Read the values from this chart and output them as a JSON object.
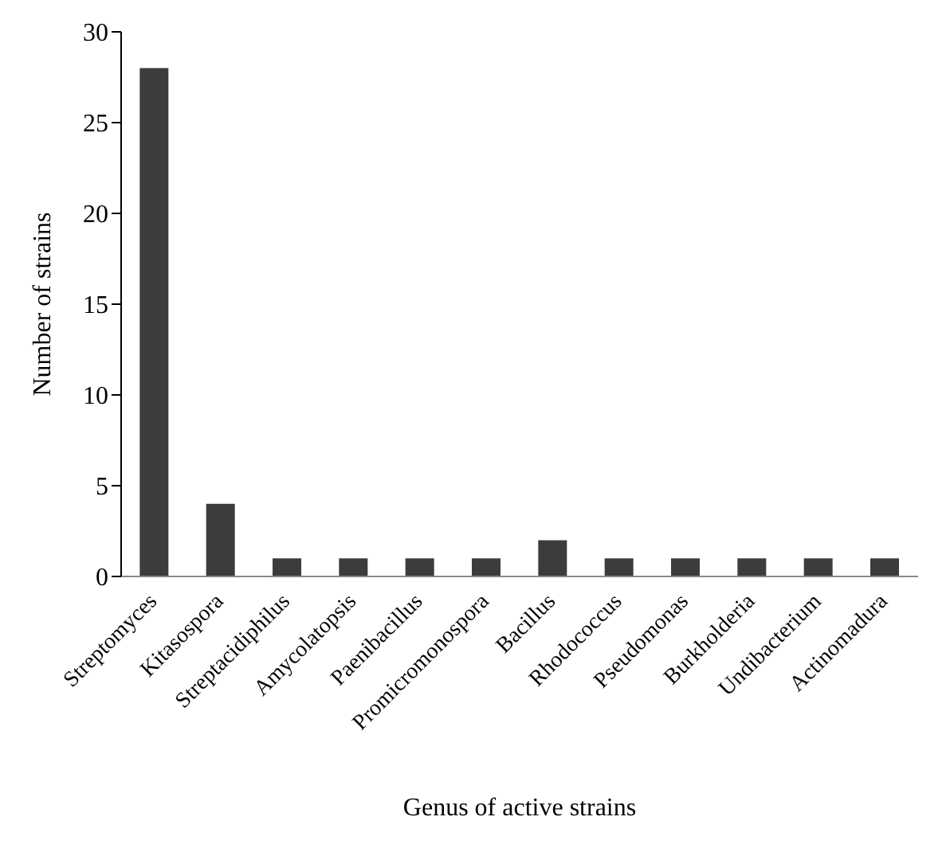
{
  "chart_data": {
    "type": "bar",
    "xlabel": "Genus of active strains",
    "ylabel": "Number of strains",
    "categories": [
      "Streptomyces",
      "Kitasospora",
      "Streptacidiphilus",
      "Amycolatopsis",
      "Paenibacillus",
      "Promicromonospora",
      "Bacillus",
      "Rhodococcus",
      "Pseudomonas",
      "Burkholderia",
      "Undibacterium",
      "Actinomadura"
    ],
    "values": [
      28,
      4,
      1,
      1,
      1,
      1,
      2,
      1,
      1,
      1,
      1,
      1
    ],
    "color": "#3c3c3c",
    "ylim": [
      0,
      30
    ],
    "yticks": [
      0,
      5,
      10,
      15,
      20,
      25,
      30
    ]
  }
}
